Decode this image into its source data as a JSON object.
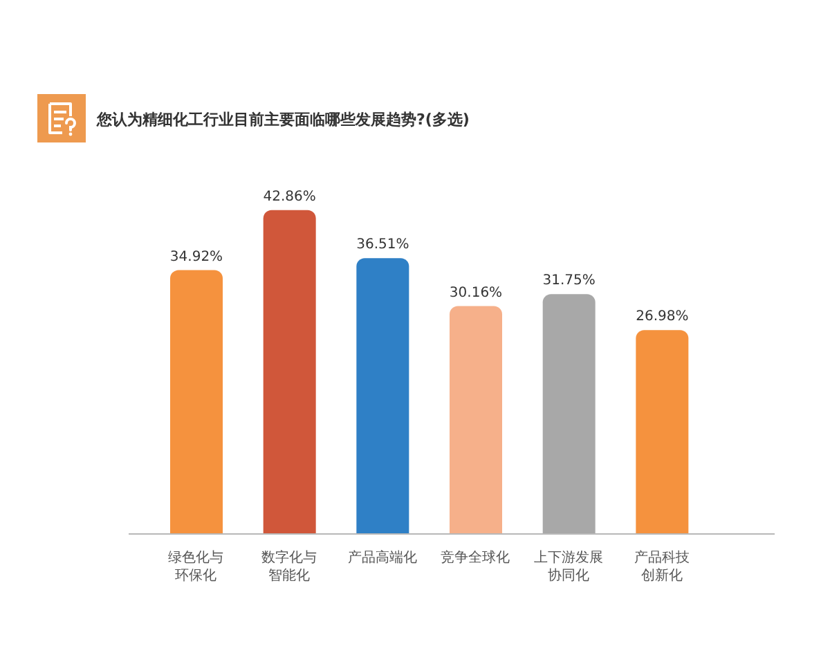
{
  "chart_data": {
    "type": "bar",
    "title": "您认为精细化工行业目前主要面临哪些发展趋势?(多选)",
    "categories": [
      "绿色化与环保化",
      "数字化与智能化",
      "产品高端化",
      "竞争全球化",
      "上下游发展协同化",
      "产品科技创新化"
    ],
    "values": [
      34.92,
      42.86,
      36.51,
      30.16,
      31.75,
      26.98
    ],
    "colors": [
      "#f5923e",
      "#d0573a",
      "#2f80c6",
      "#f6b08a",
      "#a8a8a8",
      "#f5923e"
    ],
    "value_labels": [
      "34.92%",
      "42.86%",
      "36.51%",
      "30.16%",
      "31.75%",
      "26.98%"
    ],
    "tick_labels": "x"
  }
}
